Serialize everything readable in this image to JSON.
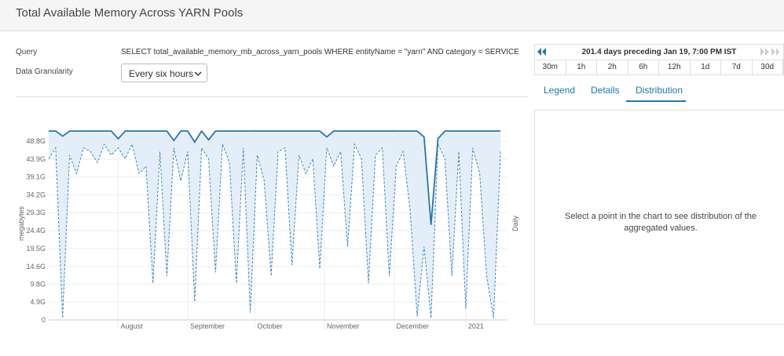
{
  "header": {
    "title": "Total Available Memory Across YARN Pools"
  },
  "query": {
    "label": "Query",
    "text": "SELECT total_available_memory_mb_across_yarn_pools WHERE entityName = \"yarn\" AND category = SERVICE"
  },
  "granularity": {
    "label": "Data Granularity",
    "selected": "Every six hours"
  },
  "time_range": {
    "text": "201.4 days preceding Jan 19, 7:00 PM IST",
    "buttons": [
      "30m",
      "1h",
      "2h",
      "6h",
      "12h",
      "1d",
      "7d",
      "30d"
    ]
  },
  "tabs": {
    "items": [
      "Legend",
      "Details",
      "Distribution"
    ],
    "active": 2
  },
  "distribution_message": "Select a point in the chart to see distribution of the aggregated values.",
  "chart_data": {
    "type": "line",
    "y_label": "megabytes",
    "y2_label": "Daily",
    "x": [
      0,
      3,
      6,
      9,
      12,
      15,
      18,
      21,
      24,
      27,
      30,
      33,
      36,
      39,
      42,
      45,
      48,
      51,
      54,
      57,
      60,
      63,
      66,
      69,
      72,
      75,
      78,
      81,
      84,
      87,
      90,
      93,
      96,
      99,
      102,
      105,
      108,
      111,
      114,
      117,
      120,
      123,
      126,
      129,
      132,
      135,
      138,
      141,
      144,
      147,
      150,
      153,
      156,
      159,
      162,
      165,
      168,
      171,
      174,
      177,
      180,
      183,
      186,
      189,
      192,
      195
    ],
    "xlim": [
      0,
      198
    ],
    "xticks": [
      {
        "value": 30,
        "label": "August"
      },
      {
        "value": 60,
        "label": "September"
      },
      {
        "value": 89,
        "label": "October"
      },
      {
        "value": 119,
        "label": "November"
      },
      {
        "value": 149,
        "label": "December"
      },
      {
        "value": 180,
        "label": "2021"
      }
    ],
    "ylim": [
      0,
      52.7
    ],
    "yticks": [
      0,
      {
        "value": 4.9,
        "label": "4.9G"
      },
      {
        "value": 9.8,
        "label": "9.8G"
      },
      {
        "value": 14.6,
        "label": "14.6G"
      },
      {
        "value": 19.5,
        "label": "19.5G"
      },
      {
        "value": 24.4,
        "label": "24.4G"
      },
      {
        "value": 29.3,
        "label": "29.3G"
      },
      {
        "value": 34.2,
        "label": "34.2G"
      },
      {
        "value": 39.1,
        "label": "39.1G"
      },
      {
        "value": 43.9,
        "label": "43.9G"
      },
      {
        "value": 48.8,
        "label": "48.8G"
      }
    ],
    "grid": true,
    "band_color": "#e4eef8",
    "series": [
      {
        "color": "#2576b0",
        "dashed": false,
        "values": [
          51.6,
          51.6,
          50.2,
          51.6,
          51.6,
          51.6,
          51.6,
          51.6,
          51.6,
          51.6,
          49.5,
          51.6,
          51.6,
          51.6,
          51.6,
          51.6,
          51.6,
          51.6,
          49,
          51.6,
          51.6,
          48.6,
          51.6,
          49.2,
          51.6,
          51.6,
          51.6,
          51.6,
          51.6,
          51.6,
          51.6,
          51.6,
          51.6,
          51.6,
          51.6,
          51.6,
          51.6,
          51.6,
          51.6,
          51.6,
          50,
          51.6,
          51.6,
          51.6,
          51.6,
          51.6,
          51.6,
          51.6,
          51.6,
          51.6,
          51.6,
          51.6,
          51.6,
          51.6,
          50,
          26,
          49.5,
          51.6,
          51.6,
          51.6,
          51.6,
          51.6,
          51.6,
          51.6,
          51.6,
          51.6
        ]
      },
      {
        "color": "#3a87c0",
        "dashed": true,
        "values": [
          44,
          47,
          0.5,
          45,
          40,
          47,
          46,
          43,
          48,
          45,
          47,
          44,
          48,
          40,
          42,
          10,
          46,
          12,
          47,
          38,
          46,
          5,
          47,
          44,
          13,
          48,
          43,
          10,
          47,
          2,
          45,
          38,
          12,
          46,
          47,
          15,
          45,
          40,
          44,
          14,
          47,
          42,
          46,
          20,
          48,
          44,
          10,
          45,
          47,
          12,
          42,
          46,
          30,
          1,
          20,
          0.5,
          48,
          44,
          12,
          46,
          3,
          47,
          40,
          12,
          0.5,
          46
        ]
      }
    ]
  }
}
